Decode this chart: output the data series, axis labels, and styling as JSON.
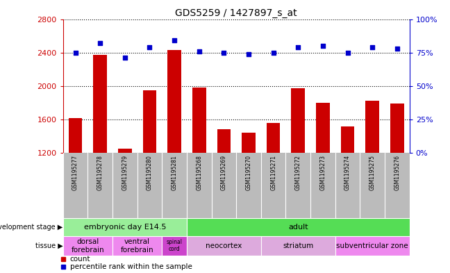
{
  "title": "GDS5259 / 1427897_s_at",
  "samples": [
    "GSM1195277",
    "GSM1195278",
    "GSM1195279",
    "GSM1195280",
    "GSM1195281",
    "GSM1195268",
    "GSM1195269",
    "GSM1195270",
    "GSM1195271",
    "GSM1195272",
    "GSM1195273",
    "GSM1195274",
    "GSM1195275",
    "GSM1195276"
  ],
  "counts": [
    1620,
    2370,
    1250,
    1950,
    2430,
    1980,
    1480,
    1440,
    1560,
    1970,
    1800,
    1520,
    1820,
    1790
  ],
  "percentiles": [
    75,
    82,
    71,
    79,
    84,
    76,
    75,
    74,
    75,
    79,
    80,
    75,
    79,
    78
  ],
  "ymin": 1200,
  "ymax": 2800,
  "yticks": [
    1200,
    1600,
    2000,
    2400,
    2800
  ],
  "right_yticks": [
    0,
    25,
    50,
    75,
    100
  ],
  "bar_color": "#cc0000",
  "dot_color": "#0000cc",
  "background_color": "#ffffff",
  "label_bg_color": "#bbbbbb",
  "dev_stage_groups": [
    {
      "label": "embryonic day E14.5",
      "start": 0,
      "end": 4,
      "color": "#99ee99"
    },
    {
      "label": "adult",
      "start": 5,
      "end": 13,
      "color": "#55dd55"
    }
  ],
  "tissue_groups": [
    {
      "label": "dorsal\nforebrain",
      "start": 0,
      "end": 1,
      "color": "#ee88ee"
    },
    {
      "label": "ventral\nforebrain",
      "start": 2,
      "end": 3,
      "color": "#ee88ee"
    },
    {
      "label": "spinal\ncord",
      "start": 4,
      "end": 4,
      "color": "#cc44cc"
    },
    {
      "label": "neocortex",
      "start": 5,
      "end": 7,
      "color": "#ddaadd"
    },
    {
      "label": "striatum",
      "start": 8,
      "end": 10,
      "color": "#ddaadd"
    },
    {
      "label": "subventricular zone",
      "start": 11,
      "end": 13,
      "color": "#ee88ee"
    }
  ],
  "bar_color_red": "#cc0000",
  "right_ylabel_color": "#0000cc",
  "left_ylabel_color": "#cc0000"
}
